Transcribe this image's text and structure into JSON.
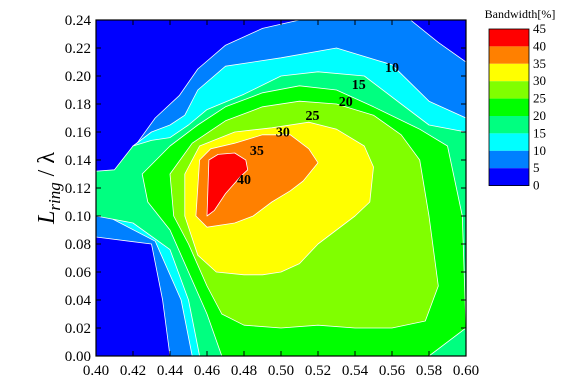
{
  "chart_data": {
    "type": "heatmap",
    "subtype": "filled-contour",
    "title": "",
    "xlabel": "",
    "ylabel": {
      "base": "L",
      "subscript": "ring",
      "suffix": " / λ"
    },
    "xlim": [
      0.4,
      0.6
    ],
    "ylim": [
      0.0,
      0.24
    ],
    "x_ticks": [
      "0.40",
      "0.42",
      "0.44",
      "0.46",
      "0.48",
      "0.50",
      "0.52",
      "0.54",
      "0.56",
      "0.58",
      "0.60"
    ],
    "y_ticks": [
      "0.00",
      "0.02",
      "0.04",
      "0.06",
      "0.08",
      "0.10",
      "0.12",
      "0.14",
      "0.16",
      "0.18",
      "0.20",
      "0.22",
      "0.24"
    ],
    "legend": {
      "title": "Bandwidth[%]",
      "placement": "right",
      "levels": [
        "45",
        "40",
        "35",
        "30",
        "25",
        "20",
        "15",
        "10",
        "5",
        "0"
      ],
      "colors": [
        "#ff0000",
        "#ff8000",
        "#ffff00",
        "#80ff00",
        "#00ff00",
        "#00ff80",
        "#00ffff",
        "#0080ff",
        "#0000ff"
      ]
    },
    "level_colors": {
      "0": "#0000ff",
      "5": "#0080ff",
      "10": "#00ffff",
      "15": "#00ff80",
      "20": "#00ff00",
      "25": "#80ff00",
      "30": "#ffff00",
      "35": "#ff8000",
      "40": "#ff0000"
    },
    "regions": [
      {
        "level": "5",
        "points": [
          [
            0.4,
            0.112
          ],
          [
            0.41,
            0.12
          ],
          [
            0.42,
            0.148
          ],
          [
            0.432,
            0.17
          ],
          [
            0.445,
            0.186
          ],
          [
            0.455,
            0.205
          ],
          [
            0.47,
            0.222
          ],
          [
            0.49,
            0.234
          ],
          [
            0.51,
            0.24
          ],
          [
            0.57,
            0.24
          ],
          [
            0.585,
            0.224
          ],
          [
            0.6,
            0.21
          ],
          [
            0.6,
            0.0
          ],
          [
            0.44,
            0.0
          ],
          [
            0.436,
            0.04
          ],
          [
            0.43,
            0.08
          ],
          [
            0.4,
            0.085
          ]
        ]
      },
      {
        "level": "10",
        "points": [
          [
            0.4,
            0.12
          ],
          [
            0.41,
            0.127
          ],
          [
            0.42,
            0.15
          ],
          [
            0.43,
            0.16
          ],
          [
            0.44,
            0.165
          ],
          [
            0.448,
            0.172
          ],
          [
            0.455,
            0.19
          ],
          [
            0.47,
            0.207
          ],
          [
            0.5,
            0.213
          ],
          [
            0.53,
            0.22
          ],
          [
            0.56,
            0.208
          ],
          [
            0.58,
            0.182
          ],
          [
            0.6,
            0.17
          ],
          [
            0.6,
            0.0
          ],
          [
            0.452,
            0.0
          ],
          [
            0.446,
            0.04
          ],
          [
            0.432,
            0.082
          ],
          [
            0.4,
            0.104
          ]
        ]
      },
      {
        "level": "15",
        "points": [
          [
            0.4,
            0.132
          ],
          [
            0.41,
            0.133
          ],
          [
            0.42,
            0.15
          ],
          [
            0.43,
            0.154
          ],
          [
            0.44,
            0.156
          ],
          [
            0.45,
            0.165
          ],
          [
            0.46,
            0.176
          ],
          [
            0.48,
            0.187
          ],
          [
            0.5,
            0.2
          ],
          [
            0.52,
            0.203
          ],
          [
            0.545,
            0.2
          ],
          [
            0.565,
            0.18
          ],
          [
            0.58,
            0.165
          ],
          [
            0.6,
            0.16
          ],
          [
            0.6,
            0.0
          ],
          [
            0.456,
            0.0
          ],
          [
            0.45,
            0.04
          ],
          [
            0.44,
            0.076
          ],
          [
            0.42,
            0.095
          ],
          [
            0.4,
            0.1
          ]
        ]
      },
      {
        "level": "20",
        "points": [
          [
            0.425,
            0.13
          ],
          [
            0.44,
            0.15
          ],
          [
            0.455,
            0.165
          ],
          [
            0.47,
            0.178
          ],
          [
            0.49,
            0.188
          ],
          [
            0.51,
            0.193
          ],
          [
            0.53,
            0.19
          ],
          [
            0.55,
            0.178
          ],
          [
            0.575,
            0.162
          ],
          [
            0.59,
            0.15
          ],
          [
            0.598,
            0.1
          ],
          [
            0.6,
            0.02
          ],
          [
            0.58,
            0.0
          ],
          [
            0.468,
            0.0
          ],
          [
            0.46,
            0.03
          ],
          [
            0.45,
            0.06
          ],
          [
            0.44,
            0.09
          ],
          [
            0.428,
            0.11
          ]
        ]
      },
      {
        "level": "25",
        "points": [
          [
            0.44,
            0.13
          ],
          [
            0.452,
            0.152
          ],
          [
            0.47,
            0.168
          ],
          [
            0.49,
            0.178
          ],
          [
            0.51,
            0.182
          ],
          [
            0.53,
            0.18
          ],
          [
            0.55,
            0.172
          ],
          [
            0.565,
            0.158
          ],
          [
            0.575,
            0.14
          ],
          [
            0.58,
            0.1
          ],
          [
            0.585,
            0.05
          ],
          [
            0.578,
            0.025
          ],
          [
            0.56,
            0.02
          ],
          [
            0.54,
            0.02
          ],
          [
            0.52,
            0.022
          ],
          [
            0.5,
            0.02
          ],
          [
            0.48,
            0.022
          ],
          [
            0.468,
            0.03
          ],
          [
            0.46,
            0.05
          ],
          [
            0.45,
            0.08
          ],
          [
            0.442,
            0.1
          ]
        ]
      },
      {
        "level": "30",
        "points": [
          [
            0.448,
            0.13
          ],
          [
            0.456,
            0.15
          ],
          [
            0.475,
            0.16
          ],
          [
            0.495,
            0.163
          ],
          [
            0.515,
            0.167
          ],
          [
            0.53,
            0.162
          ],
          [
            0.545,
            0.15
          ],
          [
            0.55,
            0.135
          ],
          [
            0.548,
            0.11
          ],
          [
            0.54,
            0.1
          ],
          [
            0.53,
            0.09
          ],
          [
            0.52,
            0.08
          ],
          [
            0.51,
            0.066
          ],
          [
            0.5,
            0.06
          ],
          [
            0.49,
            0.058
          ],
          [
            0.48,
            0.058
          ],
          [
            0.465,
            0.06
          ],
          [
            0.455,
            0.072
          ],
          [
            0.448,
            0.1
          ]
        ]
      },
      {
        "level": "35",
        "points": [
          [
            0.454,
            0.1
          ],
          [
            0.456,
            0.14
          ],
          [
            0.462,
            0.148
          ],
          [
            0.475,
            0.152
          ],
          [
            0.49,
            0.158
          ],
          [
            0.505,
            0.158
          ],
          [
            0.515,
            0.148
          ],
          [
            0.52,
            0.138
          ],
          [
            0.512,
            0.125
          ],
          [
            0.505,
            0.118
          ],
          [
            0.495,
            0.11
          ],
          [
            0.485,
            0.1
          ],
          [
            0.475,
            0.095
          ],
          [
            0.46,
            0.092
          ]
        ]
      },
      {
        "level": "40",
        "points": [
          [
            0.46,
            0.1
          ],
          [
            0.461,
            0.14
          ],
          [
            0.466,
            0.144
          ],
          [
            0.475,
            0.145
          ],
          [
            0.481,
            0.14
          ],
          [
            0.482,
            0.133
          ],
          [
            0.478,
            0.128
          ],
          [
            0.47,
            0.116
          ],
          [
            0.464,
            0.104
          ]
        ]
      }
    ],
    "contour_labels": [
      {
        "text": "10",
        "x": 0.56,
        "y": 0.205
      },
      {
        "text": "15",
        "x": 0.542,
        "y": 0.193
      },
      {
        "text": "20",
        "x": 0.535,
        "y": 0.181
      },
      {
        "text": "25",
        "x": 0.517,
        "y": 0.171
      },
      {
        "text": "30",
        "x": 0.501,
        "y": 0.159
      },
      {
        "text": "35",
        "x": 0.487,
        "y": 0.146
      },
      {
        "text": "40",
        "x": 0.48,
        "y": 0.125
      }
    ]
  }
}
